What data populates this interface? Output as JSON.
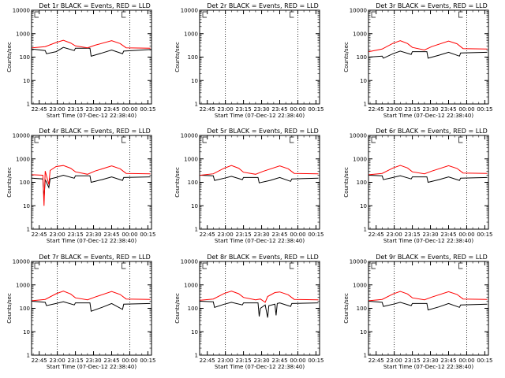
{
  "colors": {
    "events": "#000000",
    "lld": "#ff0000",
    "background": "#ffffff"
  },
  "shared": {
    "xlabel": "Start Time (07-Dec-12 22:38:40)",
    "ylabel": "Counts/sec",
    "xticks": [
      "22:45",
      "23:00",
      "23:15",
      "23:30",
      "23:45",
      "00:00",
      "00:15"
    ],
    "yticks": [
      "1",
      "10",
      "100",
      "1000",
      "10000"
    ]
  },
  "chart_data": [
    {
      "type": "line",
      "title": "Det 1r BLACK = Events, RED = LLD",
      "yscale": "log",
      "ylim": [
        1,
        10000
      ],
      "x_range": [
        "22:38:40",
        "00:18"
      ],
      "series": [
        {
          "name": "Events",
          "color": "#000000",
          "points": [
            [
              -6,
              220
            ],
            [
              5,
              190
            ],
            [
              6,
              140
            ],
            [
              14,
              170
            ],
            [
              20,
              260
            ],
            [
              29,
              190
            ],
            [
              30,
              240
            ],
            [
              42,
              240
            ],
            [
              43,
              110
            ],
            [
              52,
              150
            ],
            [
              60,
              200
            ],
            [
              69,
              140
            ],
            [
              70,
              180
            ],
            [
              92,
              210
            ],
            [
              93,
              210
            ]
          ]
        },
        {
          "name": "LLD",
          "color": "#ff0000",
          "points": [
            [
              -6,
              250
            ],
            [
              5,
              280
            ],
            [
              14,
              420
            ],
            [
              20,
              520
            ],
            [
              26,
              400
            ],
            [
              30,
              300
            ],
            [
              40,
              250
            ],
            [
              46,
              320
            ],
            [
              60,
              500
            ],
            [
              67,
              380
            ],
            [
              72,
              250
            ],
            [
              92,
              240
            ]
          ]
        }
      ]
    },
    {
      "type": "line",
      "title": "Det 2r BLACK = Events, RED = LLD",
      "yscale": "log",
      "ylim": [
        1,
        10000
      ],
      "x_range": [
        "22:38:40",
        "00:18"
      ],
      "series": [
        {
          "name": "Events",
          "color": "#000000",
          "points": []
        },
        {
          "name": "LLD",
          "color": "#ff0000",
          "points": []
        }
      ]
    },
    {
      "type": "line",
      "title": "Det 3r BLACK = Events, RED = LLD",
      "yscale": "log",
      "ylim": [
        1,
        10000
      ],
      "x_range": [
        "22:38:40",
        "00:18"
      ],
      "series": [
        {
          "name": "Events",
          "color": "#000000",
          "points": [
            [
              -6,
              100
            ],
            [
              5,
              110
            ],
            [
              6,
              90
            ],
            [
              14,
              140
            ],
            [
              20,
              180
            ],
            [
              29,
              130
            ],
            [
              30,
              170
            ],
            [
              42,
              170
            ],
            [
              43,
              90
            ],
            [
              52,
              120
            ],
            [
              60,
              160
            ],
            [
              69,
              110
            ],
            [
              70,
              150
            ],
            [
              92,
              160
            ]
          ]
        },
        {
          "name": "LLD",
          "color": "#ff0000",
          "points": [
            [
              -6,
              170
            ],
            [
              5,
              220
            ],
            [
              14,
              390
            ],
            [
              20,
              500
            ],
            [
              26,
              380
            ],
            [
              30,
              260
            ],
            [
              40,
              200
            ],
            [
              46,
              280
            ],
            [
              60,
              480
            ],
            [
              67,
              370
            ],
            [
              72,
              230
            ],
            [
              92,
              220
            ]
          ]
        }
      ]
    },
    {
      "type": "line",
      "title": "Det 4r BLACK = Events, RED = LLD",
      "yscale": "log",
      "ylim": [
        1,
        10000
      ],
      "x_range": [
        "22:38:40",
        "00:18"
      ],
      "series": [
        {
          "name": "Events",
          "color": "#000000",
          "points": [
            [
              -6,
              150
            ],
            [
              3,
              140
            ],
            [
              4,
              20
            ],
            [
              5,
              130
            ],
            [
              8,
              60
            ],
            [
              9,
              140
            ],
            [
              14,
              160
            ],
            [
              20,
              200
            ],
            [
              29,
              150
            ],
            [
              30,
              190
            ],
            [
              42,
              190
            ],
            [
              43,
              100
            ],
            [
              52,
              130
            ],
            [
              60,
              170
            ],
            [
              69,
              120
            ],
            [
              70,
              160
            ],
            [
              92,
              170
            ]
          ]
        },
        {
          "name": "LLD",
          "color": "#ff0000",
          "points": [
            [
              -6,
              210
            ],
            [
              3,
              200
            ],
            [
              4,
              10
            ],
            [
              5,
              300
            ],
            [
              8,
              80
            ],
            [
              9,
              320
            ],
            [
              14,
              470
            ],
            [
              20,
              520
            ],
            [
              26,
              400
            ],
            [
              30,
              280
            ],
            [
              40,
              220
            ],
            [
              46,
              300
            ],
            [
              60,
              500
            ],
            [
              67,
              380
            ],
            [
              72,
              240
            ],
            [
              92,
              230
            ]
          ]
        }
      ]
    },
    {
      "type": "line",
      "title": "Det 5r BLACK = Events, RED = LLD",
      "yscale": "log",
      "ylim": [
        1,
        10000
      ],
      "x_range": [
        "22:38:40",
        "00:18"
      ],
      "series": [
        {
          "name": "Events",
          "color": "#000000",
          "points": [
            [
              -6,
              200
            ],
            [
              5,
              190
            ],
            [
              6,
              120
            ],
            [
              14,
              150
            ],
            [
              20,
              180
            ],
            [
              29,
              130
            ],
            [
              30,
              160
            ],
            [
              42,
              160
            ],
            [
              43,
              95
            ],
            [
              52,
              120
            ],
            [
              60,
              160
            ],
            [
              69,
              110
            ],
            [
              70,
              140
            ],
            [
              92,
              150
            ]
          ]
        },
        {
          "name": "LLD",
          "color": "#ff0000",
          "points": [
            [
              -6,
              200
            ],
            [
              5,
              230
            ],
            [
              14,
              400
            ],
            [
              20,
              520
            ],
            [
              26,
              400
            ],
            [
              30,
              270
            ],
            [
              40,
              220
            ],
            [
              46,
              290
            ],
            [
              60,
              500
            ],
            [
              67,
              380
            ],
            [
              72,
              240
            ],
            [
              92,
              230
            ]
          ]
        }
      ]
    },
    {
      "type": "line",
      "title": "Det 6r BLACK = Events, RED = LLD",
      "yscale": "log",
      "ylim": [
        1,
        10000
      ],
      "x_range": [
        "22:38:40",
        "00:18"
      ],
      "series": [
        {
          "name": "Events",
          "color": "#000000",
          "points": [
            [
              -6,
              200
            ],
            [
              5,
              190
            ],
            [
              6,
              130
            ],
            [
              14,
              160
            ],
            [
              20,
              190
            ],
            [
              29,
              140
            ],
            [
              30,
              170
            ],
            [
              42,
              170
            ],
            [
              43,
              100
            ],
            [
              52,
              130
            ],
            [
              60,
              170
            ],
            [
              69,
              120
            ],
            [
              70,
              150
            ],
            [
              92,
              160
            ]
          ]
        },
        {
          "name": "LLD",
          "color": "#ff0000",
          "points": [
            [
              -6,
              210
            ],
            [
              5,
              240
            ],
            [
              14,
              410
            ],
            [
              20,
              530
            ],
            [
              26,
              410
            ],
            [
              30,
              280
            ],
            [
              40,
              230
            ],
            [
              46,
              300
            ],
            [
              60,
              510
            ],
            [
              67,
              390
            ],
            [
              72,
              250
            ],
            [
              92,
              240
            ]
          ]
        }
      ]
    },
    {
      "type": "line",
      "title": "Det 7r BLACK = Events, RED = LLD",
      "yscale": "log",
      "ylim": [
        1,
        10000
      ],
      "x_range": [
        "22:38:40",
        "00:18"
      ],
      "series": [
        {
          "name": "Events",
          "color": "#000000",
          "points": [
            [
              -6,
              200
            ],
            [
              5,
              180
            ],
            [
              6,
              130
            ],
            [
              14,
              160
            ],
            [
              20,
              190
            ],
            [
              29,
              140
            ],
            [
              30,
              170
            ],
            [
              42,
              170
            ],
            [
              43,
              75
            ],
            [
              52,
              110
            ],
            [
              60,
              160
            ],
            [
              69,
              90
            ],
            [
              70,
              150
            ],
            [
              92,
              160
            ]
          ]
        },
        {
          "name": "LLD",
          "color": "#ff0000",
          "points": [
            [
              -6,
              210
            ],
            [
              5,
              240
            ],
            [
              14,
              420
            ],
            [
              20,
              540
            ],
            [
              26,
              410
            ],
            [
              30,
              280
            ],
            [
              40,
              230
            ],
            [
              46,
              300
            ],
            [
              60,
              520
            ],
            [
              67,
              390
            ],
            [
              72,
              250
            ],
            [
              92,
              240
            ]
          ]
        }
      ]
    },
    {
      "type": "line",
      "title": "Det 8r BLACK = Events, RED = LLD",
      "yscale": "log",
      "ylim": [
        1,
        10000
      ],
      "x_range": [
        "22:38:40",
        "00:18"
      ],
      "series": [
        {
          "name": "Events",
          "color": "#000000",
          "points": [
            [
              -6,
              200
            ],
            [
              5,
              190
            ],
            [
              6,
              110
            ],
            [
              14,
              150
            ],
            [
              20,
              180
            ],
            [
              29,
              140
            ],
            [
              30,
              170
            ],
            [
              42,
              170
            ],
            [
              43,
              45
            ],
            [
              44,
              100
            ],
            [
              48,
              140
            ],
            [
              50,
              40
            ],
            [
              51,
              130
            ],
            [
              56,
              150
            ],
            [
              57,
              50
            ],
            [
              58,
              160
            ],
            [
              60,
              170
            ],
            [
              69,
              120
            ],
            [
              70,
              160
            ],
            [
              92,
              170
            ]
          ]
        },
        {
          "name": "LLD",
          "color": "#ff0000",
          "points": [
            [
              -6,
              220
            ],
            [
              5,
              250
            ],
            [
              14,
              430
            ],
            [
              20,
              540
            ],
            [
              26,
              420
            ],
            [
              30,
              290
            ],
            [
              40,
              230
            ],
            [
              44,
              250
            ],
            [
              48,
              180
            ],
            [
              50,
              320
            ],
            [
              56,
              470
            ],
            [
              60,
              500
            ],
            [
              67,
              380
            ],
            [
              72,
              240
            ],
            [
              92,
              230
            ]
          ]
        }
      ]
    },
    {
      "type": "line",
      "title": "Det 9r BLACK = Events, RED = LLD",
      "yscale": "log",
      "ylim": [
        1,
        10000
      ],
      "x_range": [
        "22:38:40",
        "00:18"
      ],
      "series": [
        {
          "name": "Events",
          "color": "#000000",
          "points": [
            [
              -6,
              200
            ],
            [
              5,
              180
            ],
            [
              6,
              120
            ],
            [
              14,
              150
            ],
            [
              20,
              180
            ],
            [
              29,
              130
            ],
            [
              30,
              160
            ],
            [
              42,
              160
            ],
            [
              43,
              85
            ],
            [
              52,
              115
            ],
            [
              60,
              160
            ],
            [
              69,
              110
            ],
            [
              70,
              140
            ],
            [
              92,
              150
            ]
          ]
        },
        {
          "name": "LLD",
          "color": "#ff0000",
          "points": [
            [
              -6,
              210
            ],
            [
              5,
              240
            ],
            [
              14,
              410
            ],
            [
              20,
              530
            ],
            [
              26,
              410
            ],
            [
              30,
              280
            ],
            [
              40,
              230
            ],
            [
              46,
              300
            ],
            [
              60,
              510
            ],
            [
              67,
              390
            ],
            [
              72,
              250
            ],
            [
              92,
              240
            ]
          ]
        }
      ]
    }
  ]
}
